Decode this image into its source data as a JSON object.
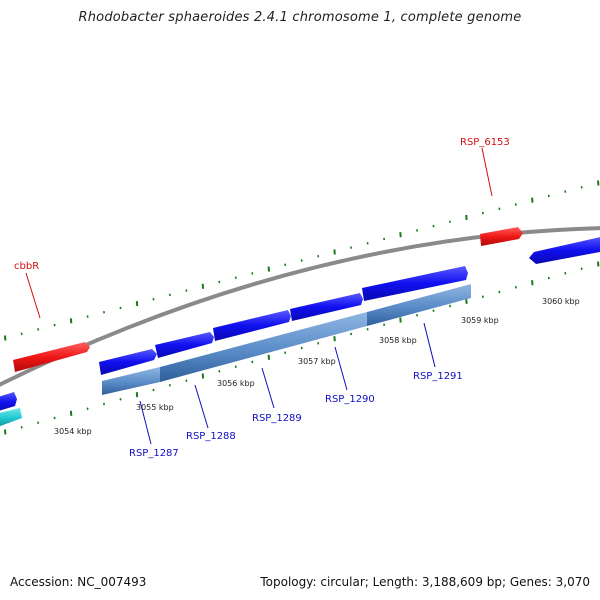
{
  "title": "Rhodobacter sphaeroides 2.4.1 chromosome 1, complete genome",
  "footer": {
    "accession": "Accession: NC_007493",
    "summary": "Topology: circular; Length: 3,188,609 bp; Genes: 3,070"
  },
  "colors": {
    "backbone": "#888888",
    "tick": "#1a7a1a",
    "gene_plus": "#1010f0",
    "gene_minus_highlight": "#5a8cc8",
    "gene_red": "#f01818",
    "gene_cyan": "#20c8d0",
    "label_blue": "#1010c0",
    "label_red": "#d01010"
  },
  "scale_labels": [
    "3054 kbp",
    "3055 kbp",
    "3056 kbp",
    "3057 kbp",
    "3058 kbp",
    "3059 kbp",
    "3060 kbp"
  ],
  "genes": {
    "labeled": [
      {
        "name": "RSP_1287",
        "track": "operon"
      },
      {
        "name": "RSP_1288",
        "track": "operon"
      },
      {
        "name": "RSP_1289",
        "track": "operon"
      },
      {
        "name": "RSP_1290",
        "track": "operon"
      },
      {
        "name": "RSP_1291",
        "track": "operon"
      },
      {
        "name": "cbbR",
        "track": "red"
      },
      {
        "name": "RSP_6153",
        "track": "red"
      }
    ]
  }
}
